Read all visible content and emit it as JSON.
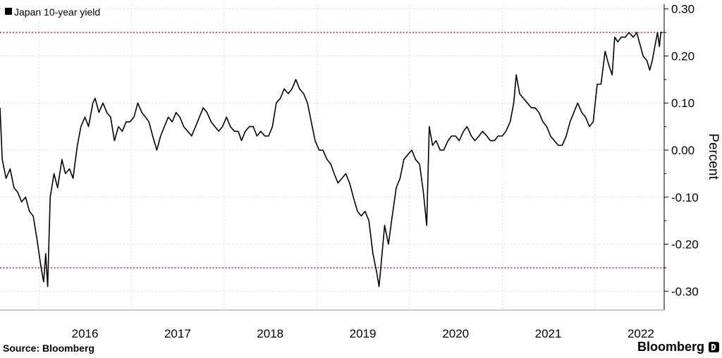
{
  "chart_data": {
    "type": "line",
    "title": "",
    "xlabel": "",
    "ylabel": "Percent",
    "ylim": [
      -0.34,
      0.31
    ],
    "xlim": [
      "2015-08-01",
      "2022-10-01"
    ],
    "y_ticks": [
      {
        "value": 0.3,
        "label": "0.30"
      },
      {
        "value": 0.2,
        "label": "0.20"
      },
      {
        "value": 0.1,
        "label": "0.10"
      },
      {
        "value": 0.0,
        "label": "0.00"
      },
      {
        "value": -0.1,
        "label": "-0.10"
      },
      {
        "value": -0.2,
        "label": "-0.20"
      },
      {
        "value": -0.3,
        "label": "-0.30"
      }
    ],
    "x_ticks": [
      {
        "label": "2016",
        "date": "2016-07-01"
      },
      {
        "label": "2017",
        "date": "2017-07-01"
      },
      {
        "label": "2018",
        "date": "2018-07-01"
      },
      {
        "label": "2019",
        "date": "2019-07-01"
      },
      {
        "label": "2020",
        "date": "2020-07-01"
      },
      {
        "label": "2021",
        "date": "2021-07-01"
      },
      {
        "label": "2022",
        "date": "2022-07-01"
      }
    ],
    "year_gridlines": [
      "2016-01-01",
      "2017-01-01",
      "2018-01-01",
      "2019-01-01",
      "2020-01-01",
      "2021-01-01",
      "2022-01-01"
    ],
    "grid": true,
    "legend_position": "top-left",
    "reference_lines": [
      {
        "value": 0.25,
        "color": "#e0245e",
        "style": "dotted"
      },
      {
        "value": -0.25,
        "color": "#e0245e",
        "style": "dotted"
      }
    ],
    "series": [
      {
        "name": "Japan 10-year yield",
        "color": "#000000",
        "points": [
          [
            "2015-08-01",
            0.09
          ],
          [
            "2015-08-10",
            -0.02
          ],
          [
            "2015-08-25",
            -0.06
          ],
          [
            "2015-09-10",
            -0.04
          ],
          [
            "2015-09-25",
            -0.08
          ],
          [
            "2015-10-10",
            -0.09
          ],
          [
            "2015-10-25",
            -0.11
          ],
          [
            "2015-11-10",
            -0.1
          ],
          [
            "2015-11-25",
            -0.13
          ],
          [
            "2015-12-10",
            -0.14
          ],
          [
            "2015-12-25",
            -0.19
          ],
          [
            "2016-01-10",
            -0.25
          ],
          [
            "2016-01-20",
            -0.28
          ],
          [
            "2016-01-28",
            -0.22
          ],
          [
            "2016-02-05",
            -0.29
          ],
          [
            "2016-02-15",
            -0.1
          ],
          [
            "2016-03-01",
            -0.05
          ],
          [
            "2016-03-15",
            -0.08
          ],
          [
            "2016-04-01",
            -0.02
          ],
          [
            "2016-04-15",
            -0.05
          ],
          [
            "2016-05-01",
            -0.04
          ],
          [
            "2016-05-15",
            -0.06
          ],
          [
            "2016-06-01",
            0.01
          ],
          [
            "2016-06-15",
            0.05
          ],
          [
            "2016-07-01",
            0.07
          ],
          [
            "2016-07-15",
            0.05
          ],
          [
            "2016-08-01",
            0.1
          ],
          [
            "2016-08-10",
            0.11
          ],
          [
            "2016-08-25",
            0.08
          ],
          [
            "2016-09-10",
            0.1
          ],
          [
            "2016-09-25",
            0.08
          ],
          [
            "2016-10-10",
            0.07
          ],
          [
            "2016-10-25",
            0.02
          ],
          [
            "2016-11-10",
            0.05
          ],
          [
            "2016-11-25",
            0.04
          ],
          [
            "2016-12-10",
            0.06
          ],
          [
            "2016-12-25",
            0.06
          ],
          [
            "2017-01-10",
            0.07
          ],
          [
            "2017-01-25",
            0.1
          ],
          [
            "2017-02-10",
            0.08
          ],
          [
            "2017-02-25",
            0.07
          ],
          [
            "2017-03-10",
            0.06
          ],
          [
            "2017-03-25",
            0.03
          ],
          [
            "2017-04-10",
            0.0
          ],
          [
            "2017-04-25",
            0.03
          ],
          [
            "2017-05-10",
            0.05
          ],
          [
            "2017-05-25",
            0.07
          ],
          [
            "2017-06-10",
            0.06
          ],
          [
            "2017-06-25",
            0.08
          ],
          [
            "2017-07-10",
            0.07
          ],
          [
            "2017-07-25",
            0.05
          ],
          [
            "2017-08-10",
            0.04
          ],
          [
            "2017-08-25",
            0.03
          ],
          [
            "2017-09-10",
            0.05
          ],
          [
            "2017-09-25",
            0.07
          ],
          [
            "2017-10-10",
            0.09
          ],
          [
            "2017-10-25",
            0.08
          ],
          [
            "2017-11-10",
            0.06
          ],
          [
            "2017-11-25",
            0.05
          ],
          [
            "2017-12-10",
            0.04
          ],
          [
            "2017-12-25",
            0.05
          ],
          [
            "2018-01-10",
            0.07
          ],
          [
            "2018-01-25",
            0.05
          ],
          [
            "2018-02-10",
            0.04
          ],
          [
            "2018-02-25",
            0.04
          ],
          [
            "2018-03-10",
            0.02
          ],
          [
            "2018-03-25",
            0.04
          ],
          [
            "2018-04-10",
            0.05
          ],
          [
            "2018-04-25",
            0.05
          ],
          [
            "2018-05-10",
            0.03
          ],
          [
            "2018-05-25",
            0.04
          ],
          [
            "2018-06-10",
            0.03
          ],
          [
            "2018-06-25",
            0.03
          ],
          [
            "2018-07-10",
            0.05
          ],
          [
            "2018-07-25",
            0.1
          ],
          [
            "2018-08-10",
            0.11
          ],
          [
            "2018-08-25",
            0.13
          ],
          [
            "2018-09-10",
            0.12
          ],
          [
            "2018-09-25",
            0.13
          ],
          [
            "2018-10-10",
            0.15
          ],
          [
            "2018-10-25",
            0.13
          ],
          [
            "2018-11-10",
            0.12
          ],
          [
            "2018-11-25",
            0.1
          ],
          [
            "2018-12-10",
            0.06
          ],
          [
            "2018-12-25",
            0.02
          ],
          [
            "2019-01-10",
            0.0
          ],
          [
            "2019-01-25",
            0.0
          ],
          [
            "2019-02-10",
            -0.02
          ],
          [
            "2019-02-25",
            -0.03
          ],
          [
            "2019-03-10",
            -0.05
          ],
          [
            "2019-03-25",
            -0.07
          ],
          [
            "2019-04-10",
            -0.06
          ],
          [
            "2019-04-25",
            -0.05
          ],
          [
            "2019-05-10",
            -0.07
          ],
          [
            "2019-05-25",
            -0.1
          ],
          [
            "2019-06-10",
            -0.13
          ],
          [
            "2019-06-25",
            -0.14
          ],
          [
            "2019-07-10",
            -0.13
          ],
          [
            "2019-07-25",
            -0.15
          ],
          [
            "2019-08-10",
            -0.22
          ],
          [
            "2019-08-25",
            -0.26
          ],
          [
            "2019-09-03",
            -0.29
          ],
          [
            "2019-09-15",
            -0.22
          ],
          [
            "2019-09-25",
            -0.16
          ],
          [
            "2019-10-10",
            -0.2
          ],
          [
            "2019-10-25",
            -0.14
          ],
          [
            "2019-11-10",
            -0.08
          ],
          [
            "2019-11-25",
            -0.06
          ],
          [
            "2019-12-10",
            -0.02
          ],
          [
            "2019-12-25",
            -0.01
          ],
          [
            "2020-01-10",
            0.0
          ],
          [
            "2020-01-25",
            -0.02
          ],
          [
            "2020-02-10",
            -0.03
          ],
          [
            "2020-02-25",
            -0.09
          ],
          [
            "2020-03-09",
            -0.16
          ],
          [
            "2020-03-19",
            0.05
          ],
          [
            "2020-04-01",
            0.01
          ],
          [
            "2020-04-15",
            0.02
          ],
          [
            "2020-05-01",
            0.0
          ],
          [
            "2020-05-15",
            0.0
          ],
          [
            "2020-06-01",
            0.02
          ],
          [
            "2020-06-15",
            0.03
          ],
          [
            "2020-07-01",
            0.03
          ],
          [
            "2020-07-15",
            0.02
          ],
          [
            "2020-08-01",
            0.04
          ],
          [
            "2020-08-15",
            0.05
          ],
          [
            "2020-09-01",
            0.03
          ],
          [
            "2020-09-15",
            0.02
          ],
          [
            "2020-10-01",
            0.03
          ],
          [
            "2020-10-15",
            0.04
          ],
          [
            "2020-11-01",
            0.03
          ],
          [
            "2020-11-15",
            0.02
          ],
          [
            "2020-12-01",
            0.02
          ],
          [
            "2020-12-15",
            0.03
          ],
          [
            "2021-01-01",
            0.03
          ],
          [
            "2021-01-15",
            0.04
          ],
          [
            "2021-02-01",
            0.06
          ],
          [
            "2021-02-15",
            0.1
          ],
          [
            "2021-02-25",
            0.16
          ],
          [
            "2021-03-10",
            0.12
          ],
          [
            "2021-03-25",
            0.11
          ],
          [
            "2021-04-10",
            0.1
          ],
          [
            "2021-04-25",
            0.09
          ],
          [
            "2021-05-10",
            0.09
          ],
          [
            "2021-05-25",
            0.08
          ],
          [
            "2021-06-10",
            0.06
          ],
          [
            "2021-06-25",
            0.05
          ],
          [
            "2021-07-10",
            0.03
          ],
          [
            "2021-07-25",
            0.02
          ],
          [
            "2021-08-10",
            0.01
          ],
          [
            "2021-08-25",
            0.01
          ],
          [
            "2021-09-10",
            0.03
          ],
          [
            "2021-09-25",
            0.06
          ],
          [
            "2021-10-10",
            0.08
          ],
          [
            "2021-10-25",
            0.1
          ],
          [
            "2021-11-10",
            0.08
          ],
          [
            "2021-11-25",
            0.07
          ],
          [
            "2021-12-10",
            0.05
          ],
          [
            "2021-12-25",
            0.06
          ],
          [
            "2022-01-10",
            0.14
          ],
          [
            "2022-01-25",
            0.14
          ],
          [
            "2022-02-10",
            0.21
          ],
          [
            "2022-02-25",
            0.18
          ],
          [
            "2022-03-10",
            0.16
          ],
          [
            "2022-03-20",
            0.24
          ],
          [
            "2022-04-01",
            0.23
          ],
          [
            "2022-04-15",
            0.24
          ],
          [
            "2022-05-01",
            0.24
          ],
          [
            "2022-05-15",
            0.25
          ],
          [
            "2022-06-01",
            0.24
          ],
          [
            "2022-06-15",
            0.25
          ],
          [
            "2022-06-25",
            0.23
          ],
          [
            "2022-07-10",
            0.2
          ],
          [
            "2022-07-25",
            0.19
          ],
          [
            "2022-08-05",
            0.17
          ],
          [
            "2022-08-15",
            0.19
          ],
          [
            "2022-08-25",
            0.22
          ],
          [
            "2022-09-05",
            0.25
          ],
          [
            "2022-09-12",
            0.22
          ],
          [
            "2022-09-18",
            0.25
          ],
          [
            "2022-09-25",
            0.25
          ]
        ]
      }
    ]
  },
  "footer": {
    "source": "Source: Bloomberg",
    "brand": "Bloomberg"
  }
}
